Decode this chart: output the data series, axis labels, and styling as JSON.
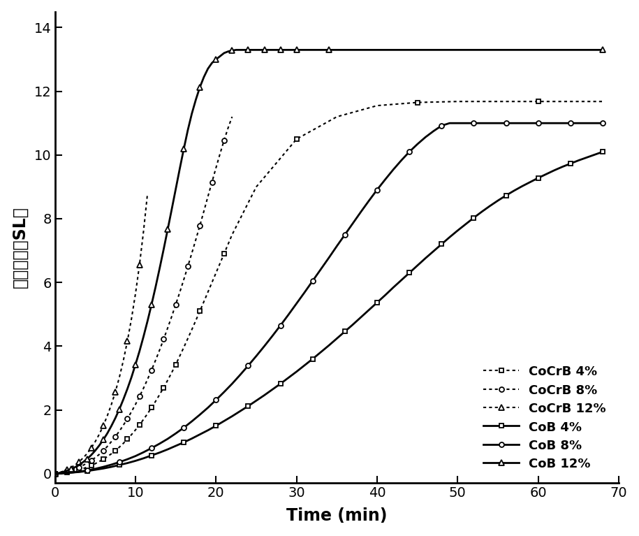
{
  "title": "",
  "xlabel": "Time (min)",
  "ylabel": "累积流量（SL）",
  "xlim": [
    0,
    70
  ],
  "ylim": [
    -0.3,
    14.5
  ],
  "xticks": [
    0,
    10,
    20,
    30,
    40,
    50,
    60,
    70
  ],
  "yticks": [
    0,
    2,
    4,
    6,
    8,
    10,
    12,
    14
  ],
  "series": [
    {
      "label": "CoCrB 4%",
      "linestyle": "dotted",
      "marker": "s",
      "markersize": 5,
      "markerfacecolor": "white",
      "linewidth": 1.5,
      "x": [
        0,
        0.5,
        1,
        1.5,
        2,
        2.5,
        3,
        3.5,
        4,
        4.5,
        5,
        5.5,
        6,
        6.5,
        7,
        7.5,
        8,
        8.5,
        9,
        9.5,
        10,
        10.5,
        11,
        11.5,
        12,
        12.5,
        13,
        13.5,
        14,
        14.5,
        15,
        16,
        17,
        18,
        19,
        20,
        21,
        22,
        25,
        30,
        35,
        40,
        45,
        50,
        55,
        60,
        65,
        68
      ],
      "y": [
        0,
        0.01,
        0.02,
        0.04,
        0.06,
        0.09,
        0.12,
        0.16,
        0.2,
        0.25,
        0.31,
        0.38,
        0.45,
        0.53,
        0.62,
        0.72,
        0.83,
        0.95,
        1.08,
        1.22,
        1.37,
        1.53,
        1.7,
        1.88,
        2.07,
        2.27,
        2.48,
        2.7,
        2.93,
        3.17,
        3.42,
        3.96,
        4.52,
        5.1,
        5.7,
        6.3,
        6.9,
        7.5,
        9.0,
        10.5,
        11.2,
        11.55,
        11.65,
        11.68,
        11.68,
        11.68,
        11.68,
        11.68
      ]
    },
    {
      "label": "CoCrB 8%",
      "linestyle": "dotted",
      "marker": "o",
      "markersize": 5,
      "markerfacecolor": "white",
      "linewidth": 1.5,
      "x": [
        0,
        0.5,
        1,
        1.5,
        2,
        2.5,
        3,
        3.5,
        4,
        4.5,
        5,
        5.5,
        6,
        6.5,
        7,
        7.5,
        8,
        8.5,
        9,
        9.5,
        10,
        10.5,
        11,
        11.5,
        12,
        12.5,
        13,
        13.5,
        14,
        14.5,
        15,
        15.5,
        16,
        16.5,
        17,
        17.5,
        18,
        18.5,
        19,
        19.5,
        20,
        20.5,
        21,
        21.5,
        22
      ],
      "y": [
        0,
        0.02,
        0.04,
        0.07,
        0.11,
        0.15,
        0.2,
        0.26,
        0.33,
        0.41,
        0.5,
        0.6,
        0.72,
        0.85,
        1.0,
        1.16,
        1.33,
        1.52,
        1.72,
        1.94,
        2.17,
        2.42,
        2.68,
        2.96,
        3.25,
        3.56,
        3.88,
        4.22,
        4.57,
        4.93,
        5.31,
        5.69,
        6.09,
        6.5,
        6.92,
        7.35,
        7.79,
        8.24,
        8.7,
        9.15,
        9.6,
        10.04,
        10.46,
        10.85,
        11.2
      ]
    },
    {
      "label": "CoCrB 12%",
      "linestyle": "dotted",
      "marker": "^",
      "markersize": 6,
      "markerfacecolor": "white",
      "linewidth": 1.5,
      "x": [
        0,
        0.5,
        1,
        1.5,
        2,
        2.5,
        3,
        3.5,
        4,
        4.5,
        5,
        5.5,
        6,
        6.5,
        7,
        7.5,
        8,
        8.5,
        9,
        9.5,
        10,
        10.5,
        11,
        11.5
      ],
      "y": [
        0,
        0.03,
        0.07,
        0.12,
        0.19,
        0.27,
        0.37,
        0.49,
        0.63,
        0.8,
        1.0,
        1.23,
        1.5,
        1.81,
        2.16,
        2.56,
        3.02,
        3.55,
        4.16,
        4.85,
        5.64,
        6.55,
        7.6,
        8.8
      ]
    },
    {
      "label": "CoB 4%",
      "linestyle": "solid",
      "marker": "s",
      "markersize": 5,
      "markerfacecolor": "white",
      "linewidth": 2.0,
      "x": [
        0,
        1,
        2,
        3,
        4,
        5,
        6,
        7,
        8,
        9,
        10,
        11,
        12,
        13,
        14,
        15,
        16,
        17,
        18,
        19,
        20,
        21,
        22,
        23,
        24,
        25,
        26,
        27,
        28,
        29,
        30,
        31,
        32,
        33,
        34,
        35,
        36,
        37,
        38,
        39,
        40,
        41,
        42,
        43,
        44,
        45,
        46,
        47,
        48,
        49,
        50,
        51,
        52,
        53,
        54,
        55,
        56,
        57,
        58,
        59,
        60,
        61,
        62,
        63,
        64,
        65,
        66,
        67,
        68
      ],
      "y": [
        0,
        0.01,
        0.03,
        0.05,
        0.08,
        0.12,
        0.16,
        0.21,
        0.27,
        0.33,
        0.4,
        0.48,
        0.57,
        0.66,
        0.76,
        0.87,
        0.98,
        1.1,
        1.23,
        1.36,
        1.5,
        1.65,
        1.8,
        1.96,
        2.12,
        2.29,
        2.46,
        2.64,
        2.82,
        3.01,
        3.2,
        3.4,
        3.6,
        3.81,
        4.02,
        4.24,
        4.46,
        4.68,
        4.91,
        5.14,
        5.37,
        5.6,
        5.84,
        6.07,
        6.3,
        6.53,
        6.76,
        6.98,
        7.2,
        7.42,
        7.63,
        7.83,
        8.03,
        8.22,
        8.4,
        8.57,
        8.73,
        8.88,
        9.02,
        9.15,
        9.28,
        9.4,
        9.52,
        9.63,
        9.73,
        9.83,
        9.92,
        10.01,
        10.1
      ]
    },
    {
      "label": "CoB 8%",
      "linestyle": "solid",
      "marker": "o",
      "markersize": 5,
      "markerfacecolor": "white",
      "linewidth": 2.0,
      "x": [
        0,
        1,
        2,
        3,
        4,
        5,
        6,
        7,
        8,
        9,
        10,
        11,
        12,
        13,
        14,
        15,
        16,
        17,
        18,
        19,
        20,
        21,
        22,
        23,
        24,
        25,
        26,
        27,
        28,
        29,
        30,
        31,
        32,
        33,
        34,
        35,
        36,
        37,
        38,
        39,
        40,
        41,
        42,
        43,
        44,
        45,
        46,
        47,
        48,
        49,
        50,
        51,
        52,
        53,
        54,
        55,
        56,
        57,
        58,
        59,
        60,
        61,
        62,
        63,
        64,
        65,
        66,
        67,
        68
      ],
      "y": [
        0,
        0.01,
        0.03,
        0.06,
        0.1,
        0.15,
        0.21,
        0.28,
        0.36,
        0.45,
        0.55,
        0.67,
        0.8,
        0.94,
        1.09,
        1.26,
        1.44,
        1.64,
        1.85,
        2.07,
        2.31,
        2.56,
        2.82,
        3.1,
        3.39,
        3.69,
        4.0,
        4.32,
        4.65,
        4.99,
        5.34,
        5.69,
        6.05,
        6.41,
        6.77,
        7.14,
        7.5,
        7.86,
        8.22,
        8.57,
        8.91,
        9.23,
        9.54,
        9.83,
        10.1,
        10.34,
        10.56,
        10.75,
        10.92,
        11.0,
        11.0,
        11.0,
        11.0,
        11.0,
        11.0,
        11.0,
        11.0,
        11.0,
        11.0,
        11.0,
        11.0,
        11.0,
        11.0,
        11.0,
        11.0,
        11.0,
        11.0,
        11.0,
        11.0
      ]
    },
    {
      "label": "CoB 12%",
      "linestyle": "solid",
      "marker": "^",
      "markersize": 6,
      "markerfacecolor": "white",
      "linewidth": 2.0,
      "x": [
        0,
        0.5,
        1,
        1.5,
        2,
        2.5,
        3,
        3.5,
        4,
        4.5,
        5,
        5.5,
        6,
        6.5,
        7,
        7.5,
        8,
        8.5,
        9,
        9.5,
        10,
        10.5,
        11,
        11.5,
        12,
        12.5,
        13,
        13.5,
        14,
        14.5,
        15,
        15.5,
        16,
        16.5,
        17,
        17.5,
        18,
        18.5,
        19,
        19.5,
        20,
        20.5,
        21,
        21.5,
        22,
        22.5,
        23,
        23.5,
        24,
        24.5,
        25,
        25.5,
        26,
        26.5,
        27,
        27.5,
        28,
        28.5,
        29,
        29.5,
        30,
        31,
        32,
        33,
        34,
        65,
        66,
        67,
        68
      ],
      "y": [
        0,
        0.02,
        0.05,
        0.09,
        0.14,
        0.2,
        0.27,
        0.36,
        0.46,
        0.58,
        0.72,
        0.88,
        1.06,
        1.26,
        1.49,
        1.74,
        2.02,
        2.33,
        2.66,
        3.02,
        3.42,
        3.84,
        4.3,
        4.79,
        5.31,
        5.86,
        6.44,
        7.04,
        7.66,
        8.29,
        8.93,
        9.57,
        10.19,
        10.78,
        11.3,
        11.74,
        12.13,
        12.45,
        12.71,
        12.89,
        13.0,
        13.1,
        13.2,
        13.25,
        13.28,
        13.3,
        13.3,
        13.3,
        13.3,
        13.3,
        13.3,
        13.3,
        13.3,
        13.3,
        13.3,
        13.3,
        13.3,
        13.3,
        13.3,
        13.3,
        13.3,
        13.3,
        13.3,
        13.3,
        13.3,
        13.3,
        13.3,
        13.3,
        13.3
      ]
    }
  ],
  "legend_fontsize": 13,
  "axis_label_fontsize": 17,
  "tick_fontsize": 14,
  "background_color": "#ffffff"
}
